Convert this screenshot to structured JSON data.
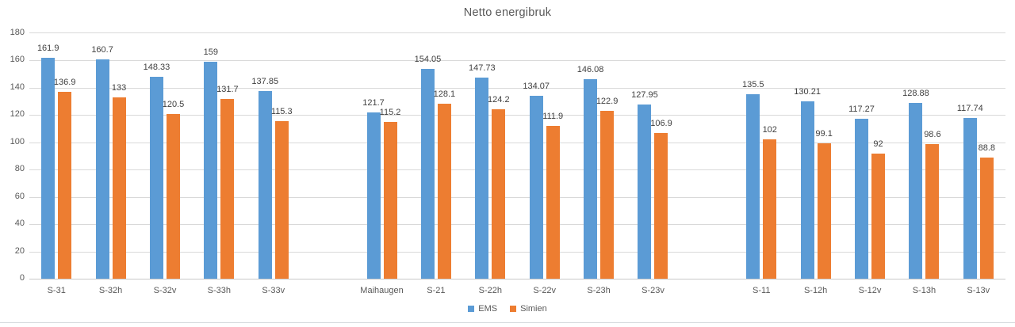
{
  "chart_data": {
    "type": "bar",
    "title": "Netto energibruk",
    "categories": [
      "S-31",
      "S-32h",
      "S-32v",
      "S-33h",
      "S-33v",
      "Maihaugen",
      "S-21",
      "S-22h",
      "S-22v",
      "S-23h",
      "S-23v",
      "S-11",
      "S-12h",
      "S-12v",
      "S-13h",
      "S-13v"
    ],
    "series": [
      {
        "name": "EMS",
        "color": "#5B9BD5",
        "values": [
          161.9,
          160.7,
          148.33,
          159,
          137.85,
          121.7,
          154.05,
          147.73,
          134.07,
          146.08,
          127.95,
          135.5,
          130.21,
          117.27,
          128.88,
          117.74
        ]
      },
      {
        "name": "Simien",
        "color": "#ED7D31",
        "values": [
          136.9,
          133,
          120.5,
          131.7,
          115.3,
          115.2,
          128.1,
          124.2,
          111.9,
          122.9,
          106.9,
          102,
          99.1,
          92,
          98.6,
          88.8
        ]
      }
    ],
    "ylim": [
      0,
      180
    ],
    "yticks": [
      0,
      20,
      40,
      60,
      80,
      100,
      120,
      140,
      160,
      180
    ],
    "grid": true,
    "data_labels": true,
    "legend_position": "bottom",
    "gaps_after_categories": [
      "S-33v",
      "S-23v"
    ]
  },
  "style": {
    "background": "#FFFFFF",
    "grid_color": "#D9D9D9",
    "axis_line_color": "#C9C9C9",
    "title_color": "#595959",
    "tick_label_color": "#595959",
    "category_label_color": "#595959",
    "data_label_color": "#404040",
    "legend_text_color": "#595959",
    "bottom_border_color": "#D6DADD"
  }
}
